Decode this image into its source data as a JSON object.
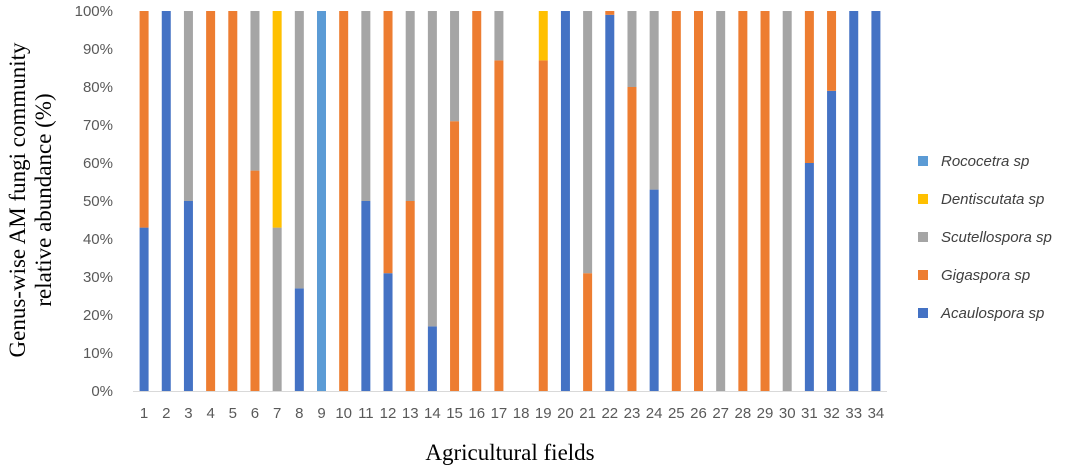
{
  "chart_data": {
    "type": "bar",
    "stacked": true,
    "percent_stacked": true,
    "title": "",
    "xlabel": "Agricultural fields",
    "ylabel_lines": [
      "Genus-wise AM fungi community",
      "relative abundance (%)"
    ],
    "ylim": [
      0,
      100
    ],
    "yticks": [
      "0%",
      "10%",
      "20%",
      "30%",
      "40%",
      "50%",
      "60%",
      "70%",
      "80%",
      "90%",
      "100%"
    ],
    "grid": false,
    "legend_position": "right",
    "categories": [
      "1",
      "2",
      "3",
      "4",
      "5",
      "6",
      "7",
      "8",
      "9",
      "10",
      "11",
      "12",
      "13",
      "14",
      "15",
      "16",
      "17",
      "18",
      "19",
      "20",
      "21",
      "22",
      "23",
      "24",
      "25",
      "26",
      "27",
      "28",
      "29",
      "30",
      "31",
      "32",
      "33",
      "34"
    ],
    "series": [
      {
        "name": "Acaulospora sp",
        "color": "#4472c4",
        "values": [
          43,
          100,
          50,
          0,
          0,
          0,
          0,
          27,
          0,
          0,
          50,
          31,
          0,
          17,
          0,
          0,
          0,
          0,
          0,
          100,
          0,
          99,
          0,
          53,
          0,
          0,
          0,
          0,
          0,
          0,
          60,
          79,
          100,
          100
        ]
      },
      {
        "name": "Gigaspora sp",
        "color": "#ed7d31",
        "values": [
          57,
          0,
          0,
          100,
          100,
          58,
          0,
          0,
          0,
          100,
          0,
          69,
          50,
          0,
          71,
          100,
          87,
          0,
          87,
          0,
          31,
          1,
          80,
          0,
          100,
          100,
          0,
          100,
          100,
          0,
          40,
          21,
          0,
          0
        ]
      },
      {
        "name": "Scutellospora sp",
        "color": "#a5a5a5",
        "values": [
          0,
          0,
          50,
          0,
          0,
          42,
          43,
          73,
          0,
          0,
          50,
          0,
          50,
          83,
          29,
          0,
          13,
          0,
          0,
          0,
          69,
          0,
          20,
          47,
          0,
          0,
          100,
          0,
          0,
          100,
          0,
          0,
          0,
          0
        ]
      },
      {
        "name": "Dentiscutata sp",
        "color": "#ffc000",
        "values": [
          0,
          0,
          0,
          0,
          0,
          0,
          57,
          0,
          0,
          0,
          0,
          0,
          0,
          0,
          0,
          0,
          0,
          0,
          13,
          0,
          0,
          0,
          0,
          0,
          0,
          0,
          0,
          0,
          0,
          0,
          0,
          0,
          0,
          0
        ]
      },
      {
        "name": "Rococetra sp",
        "color": "#5b9bd5",
        "values": [
          0,
          0,
          0,
          0,
          0,
          0,
          0,
          0,
          100,
          0,
          0,
          0,
          0,
          0,
          0,
          0,
          0,
          0,
          0,
          0,
          0,
          0,
          0,
          0,
          0,
          0,
          0,
          0,
          0,
          0,
          0,
          0,
          0,
          0
        ]
      }
    ],
    "legend_order": [
      "Rococetra sp",
      "Dentiscutata sp",
      "Scutellospora sp",
      "Gigaspora sp",
      "Acaulospora sp"
    ]
  }
}
